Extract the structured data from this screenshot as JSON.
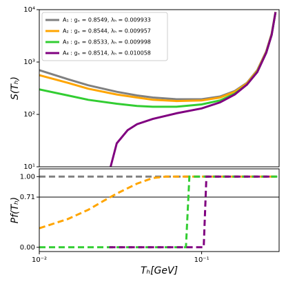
{
  "chart_data": [
    {
      "type": "line",
      "ylabel": "S(Tₕ)",
      "xscale": "log",
      "yscale": "log",
      "xlim": [
        0.01,
        0.3
      ],
      "ylim": [
        10,
        10000
      ],
      "yticks": [
        {
          "value": 10,
          "label": "10¹"
        },
        {
          "value": 100,
          "label": "10²"
        },
        {
          "value": 1000,
          "label": "10³"
        },
        {
          "value": 10000,
          "label": "10⁴"
        }
      ],
      "legend": "upper left",
      "series": [
        {
          "name": "A₁ : gₓ = 0.8549, λₕ = 0.009933",
          "color": "#808080",
          "x": [
            0.01,
            0.015,
            0.02,
            0.03,
            0.04,
            0.05,
            0.07,
            0.1,
            0.13,
            0.16,
            0.19,
            0.22,
            0.25,
            0.27,
            0.285
          ],
          "values": [
            700,
            470,
            360,
            270,
            230,
            210,
            195,
            195,
            220,
            280,
            400,
            700,
            1600,
            3500,
            9000
          ]
        },
        {
          "name": "A₂ : gₓ = 0.8544, λₕ = 0.009957",
          "color": "#ffa500",
          "x": [
            0.01,
            0.015,
            0.02,
            0.03,
            0.04,
            0.05,
            0.07,
            0.1,
            0.13,
            0.16,
            0.19,
            0.22,
            0.25,
            0.27,
            0.285
          ],
          "values": [
            560,
            400,
            310,
            240,
            210,
            190,
            180,
            185,
            210,
            270,
            390,
            680,
            1550,
            3400,
            9000
          ]
        },
        {
          "name": "A₃ : gₓ = 0.8533, λₕ = 0.009998",
          "color": "#32cd32",
          "x": [
            0.01,
            0.015,
            0.02,
            0.03,
            0.04,
            0.05,
            0.07,
            0.1,
            0.13,
            0.16,
            0.19,
            0.22,
            0.25,
            0.27,
            0.285
          ],
          "values": [
            300,
            230,
            190,
            160,
            145,
            140,
            140,
            155,
            185,
            250,
            370,
            650,
            1500,
            3300,
            9000
          ]
        },
        {
          "name": "A₄ : gₓ = 0.8514, λₕ = 0.010058",
          "color": "#800080",
          "x": [
            0.0275,
            0.03,
            0.035,
            0.04,
            0.05,
            0.07,
            0.1,
            0.13,
            0.16,
            0.19,
            0.22,
            0.25,
            0.27,
            0.285
          ],
          "values": [
            10,
            28,
            50,
            65,
            82,
            105,
            130,
            170,
            240,
            370,
            640,
            1500,
            3300,
            9000
          ]
        }
      ]
    },
    {
      "type": "line",
      "ylabel": "Pf(Tₕ)",
      "xlabel": "Tₕ[GeV]",
      "xscale": "log",
      "yscale": "linear",
      "dashed": true,
      "xlim": [
        0.01,
        0.3
      ],
      "ylim": [
        -0.06,
        1.11
      ],
      "xticks": [
        {
          "value": 0.01,
          "label": "10⁻²"
        },
        {
          "value": 0.1,
          "label": "10⁻¹"
        }
      ],
      "yticks": [
        {
          "value": 0,
          "label": "0.00"
        },
        0.71,
        {
          "value": 1,
          "label": "1.00"
        }
      ],
      "hline": 0.71,
      "series": [
        {
          "color": "#808080",
          "x": [
            0.01,
            0.3
          ],
          "values": [
            1,
            1
          ]
        },
        {
          "color": "#ffa500",
          "x": [
            0.01,
            0.015,
            0.02,
            0.025,
            0.03,
            0.04,
            0.05,
            0.06,
            0.3
          ],
          "values": [
            0.27,
            0.4,
            0.53,
            0.66,
            0.76,
            0.9,
            0.98,
            1,
            1
          ]
        },
        {
          "color": "#32cd32",
          "x": [
            0.01,
            0.08,
            0.084,
            0.3
          ],
          "values": [
            0,
            0,
            1,
            1
          ]
        },
        {
          "color": "#800080",
          "x": [
            0.027,
            0.103,
            0.107,
            0.27
          ],
          "values": [
            0,
            0,
            1,
            1
          ]
        }
      ]
    }
  ]
}
